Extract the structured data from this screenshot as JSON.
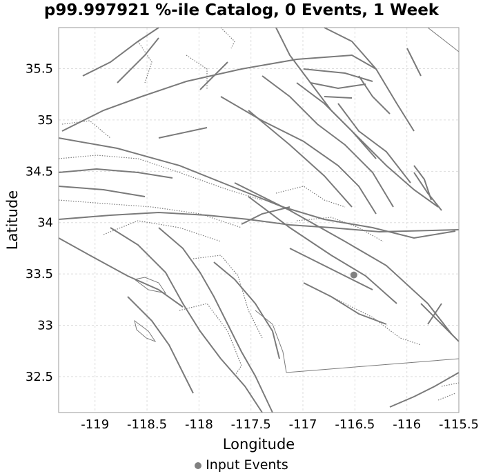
{
  "title": "p99.997921 %-ile Catalog, 0 Events, 1 Week",
  "chart_data": {
    "type": "scatter",
    "title": "p99.997921 %-ile Catalog, 0 Events, 1 Week",
    "xlabel": "Longitude",
    "ylabel": "Latitude",
    "xlim": [
      -119.35,
      -115.5
    ],
    "ylim": [
      32.15,
      35.9
    ],
    "xticks": [
      "-119",
      "-118.5",
      "-118",
      "-117.5",
      "-117",
      "-116.5",
      "-116",
      "-115.5"
    ],
    "yticks": [
      "32.5",
      "33",
      "33.5",
      "34",
      "34.5",
      "35",
      "35.5"
    ],
    "grid": true,
    "legend_position": "bottom",
    "series": [
      {
        "name": "Input Events",
        "x": [
          -116.51
        ],
        "y": [
          33.49
        ],
        "color": "#808080"
      }
    ],
    "line_color": "#7a7a7a",
    "grid_color": "#dddddd"
  }
}
